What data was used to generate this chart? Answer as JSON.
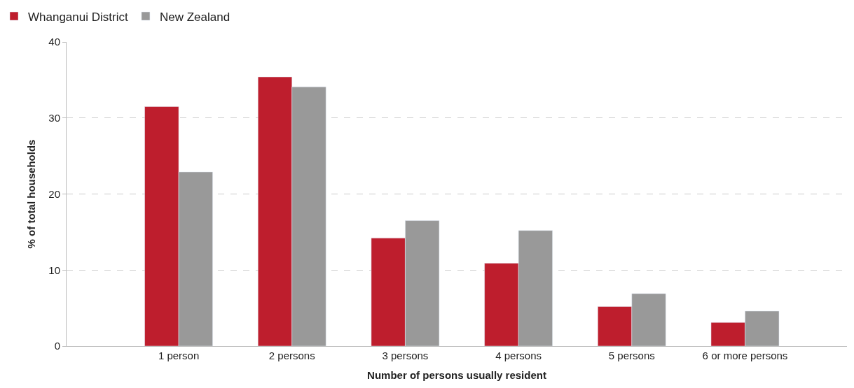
{
  "chart_data": {
    "type": "bar",
    "xlabel": "Number of persons usually resident",
    "ylabel": "% of total households",
    "categories": [
      "1 person",
      "2 persons",
      "3 persons",
      "4 persons",
      "5 persons",
      "6 or more persons"
    ],
    "series": [
      {
        "name": "Whanganui District",
        "color": "#be1e2d",
        "values": [
          31.5,
          35.4,
          14.2,
          10.9,
          5.2,
          3.1
        ]
      },
      {
        "name": "New Zealand",
        "color": "#999999",
        "values": [
          22.9,
          34.1,
          16.5,
          15.2,
          6.9,
          4.6
        ]
      }
    ],
    "ylim": [
      0,
      40
    ],
    "yticks": [
      0,
      10,
      20,
      30,
      40
    ],
    "grid": "y",
    "legend": "top left"
  }
}
